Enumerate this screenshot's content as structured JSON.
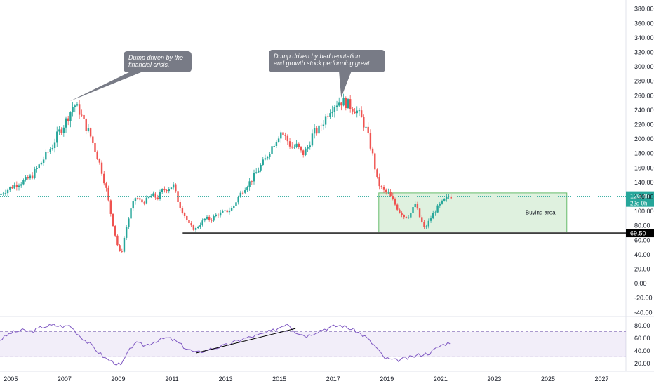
{
  "chart_data": {
    "type": "candlestick",
    "price_axis": {
      "ticks": [
        -40,
        -20,
        0,
        20,
        40,
        60,
        80,
        100,
        120,
        140,
        160,
        180,
        200,
        220,
        240,
        260,
        280,
        300,
        320,
        340,
        360,
        380
      ],
      "tick_labels": [
        "-40.00",
        "-20.00",
        "0.00",
        "20.00",
        "40.00",
        "60.00",
        "80.00",
        "100.00",
        "120.00",
        "140.00",
        "160.00",
        "180.00",
        "200.00",
        "220.00",
        "240.00",
        "260.00",
        "280.00",
        "300.00",
        "320.00",
        "340.00",
        "360.00",
        "380.00"
      ],
      "range": [
        -45,
        388
      ]
    },
    "time_axis": {
      "ticks": [
        2005,
        2007,
        2009,
        2011,
        2013,
        2015,
        2017,
        2019,
        2021,
        2023,
        2025,
        2027
      ],
      "tick_labels": [
        "2005",
        "2007",
        "2009",
        "2011",
        "2013",
        "2015",
        "2017",
        "2019",
        "2021",
        "2023",
        "2025",
        "2027"
      ],
      "range": [
        2004.6,
        2027.9
      ]
    },
    "price_series": [
      [
        2004.6,
        122
      ],
      [
        2004.8,
        127
      ],
      [
        2005.0,
        131
      ],
      [
        2005.2,
        136
      ],
      [
        2005.4,
        139
      ],
      [
        2005.6,
        143
      ],
      [
        2005.8,
        147
      ],
      [
        2006.0,
        158
      ],
      [
        2006.2,
        168
      ],
      [
        2006.4,
        180
      ],
      [
        2006.6,
        190
      ],
      [
        2006.8,
        207
      ],
      [
        2007.0,
        218
      ],
      [
        2007.2,
        232
      ],
      [
        2007.4,
        248
      ],
      [
        2007.6,
        238
      ],
      [
        2007.8,
        220
      ],
      [
        2008.0,
        205
      ],
      [
        2008.2,
        183
      ],
      [
        2008.4,
        160
      ],
      [
        2008.6,
        130
      ],
      [
        2008.8,
        90
      ],
      [
        2009.0,
        55
      ],
      [
        2009.15,
        38
      ],
      [
        2009.3,
        70
      ],
      [
        2009.5,
        100
      ],
      [
        2009.7,
        120
      ],
      [
        2009.9,
        112
      ],
      [
        2010.1,
        115
      ],
      [
        2010.3,
        122
      ],
      [
        2010.5,
        118
      ],
      [
        2010.7,
        128
      ],
      [
        2010.9,
        132
      ],
      [
        2011.1,
        135
      ],
      [
        2011.3,
        110
      ],
      [
        2011.5,
        95
      ],
      [
        2011.7,
        80
      ],
      [
        2011.9,
        74
      ],
      [
        2012.1,
        82
      ],
      [
        2012.3,
        90
      ],
      [
        2012.5,
        88
      ],
      [
        2012.7,
        95
      ],
      [
        2012.9,
        97
      ],
      [
        2013.1,
        100
      ],
      [
        2013.3,
        104
      ],
      [
        2013.5,
        118
      ],
      [
        2013.7,
        130
      ],
      [
        2013.9,
        138
      ],
      [
        2014.1,
        148
      ],
      [
        2014.3,
        160
      ],
      [
        2014.5,
        170
      ],
      [
        2014.7,
        185
      ],
      [
        2014.9,
        198
      ],
      [
        2015.1,
        210
      ],
      [
        2015.3,
        200
      ],
      [
        2015.5,
        188
      ],
      [
        2015.7,
        190
      ],
      [
        2015.9,
        178
      ],
      [
        2016.1,
        188
      ],
      [
        2016.3,
        208
      ],
      [
        2016.5,
        212
      ],
      [
        2016.7,
        225
      ],
      [
        2016.9,
        240
      ],
      [
        2017.1,
        248
      ],
      [
        2017.3,
        252
      ],
      [
        2017.5,
        250
      ],
      [
        2017.7,
        245
      ],
      [
        2017.9,
        240
      ],
      [
        2018.1,
        228
      ],
      [
        2018.3,
        210
      ],
      [
        2018.5,
        180
      ],
      [
        2018.7,
        140
      ],
      [
        2018.9,
        128
      ],
      [
        2019.1,
        125
      ],
      [
        2019.3,
        112
      ],
      [
        2019.5,
        100
      ],
      [
        2019.7,
        92
      ],
      [
        2019.9,
        94
      ],
      [
        2020.1,
        110
      ],
      [
        2020.3,
        88
      ],
      [
        2020.45,
        75
      ],
      [
        2020.6,
        85
      ],
      [
        2020.8,
        98
      ],
      [
        2021.0,
        108
      ],
      [
        2021.2,
        115
      ],
      [
        2021.35,
        120.4
      ]
    ],
    "last_price": 120.4,
    "last_price_label": "120.40",
    "countdown_label": "22d 0h",
    "support_level": 69.5,
    "support_label": "69.50",
    "buying_zone": {
      "x_start": 2018.7,
      "x_end": 2025.7,
      "y_low": 71,
      "y_high": 125,
      "label": "Buying area"
    },
    "annotations": [
      {
        "text_lines": [
          "Dump driven by the",
          "financial crisis."
        ],
        "target_x": 2007.2,
        "target_y": 252
      },
      {
        "text_lines": [
          "Dump driven by bad reputation",
          "and growth stock performing great."
        ],
        "target_x": 2017.3,
        "target_y": 257
      }
    ],
    "rsi": {
      "axis_ticks": [
        20,
        40,
        60,
        80
      ],
      "tick_labels": [
        "20.00",
        "40.00",
        "60.00",
        "80.00"
      ],
      "range": [
        8,
        93
      ],
      "band": [
        30,
        70
      ],
      "values": [
        [
          2004.6,
          57
        ],
        [
          2005.0,
          68
        ],
        [
          2005.4,
          72
        ],
        [
          2005.8,
          70
        ],
        [
          2006.2,
          78
        ],
        [
          2006.6,
          80
        ],
        [
          2007.0,
          78
        ],
        [
          2007.2,
          80
        ],
        [
          2007.5,
          66
        ],
        [
          2008.0,
          48
        ],
        [
          2008.5,
          28
        ],
        [
          2008.9,
          20
        ],
        [
          2009.1,
          16
        ],
        [
          2009.3,
          32
        ],
        [
          2009.6,
          52
        ],
        [
          2010.0,
          48
        ],
        [
          2010.4,
          55
        ],
        [
          2010.8,
          60
        ],
        [
          2011.1,
          56
        ],
        [
          2011.5,
          44
        ],
        [
          2011.9,
          36
        ],
        [
          2012.4,
          42
        ],
        [
          2013.0,
          48
        ],
        [
          2013.6,
          58
        ],
        [
          2014.2,
          64
        ],
        [
          2014.8,
          72
        ],
        [
          2015.3,
          84
        ],
        [
          2015.6,
          70
        ],
        [
          2016.0,
          63
        ],
        [
          2016.5,
          72
        ],
        [
          2017.0,
          78
        ],
        [
          2017.3,
          80
        ],
        [
          2017.8,
          72
        ],
        [
          2018.2,
          62
        ],
        [
          2018.6,
          45
        ],
        [
          2018.9,
          28
        ],
        [
          2019.3,
          24
        ],
        [
          2019.8,
          28
        ],
        [
          2020.2,
          33
        ],
        [
          2020.6,
          36
        ],
        [
          2021.0,
          48
        ],
        [
          2021.35,
          53
        ]
      ],
      "trendline": {
        "x1": 2011.9,
        "y1": 36,
        "x2": 2015.6,
        "y2": 75
      }
    }
  }
}
